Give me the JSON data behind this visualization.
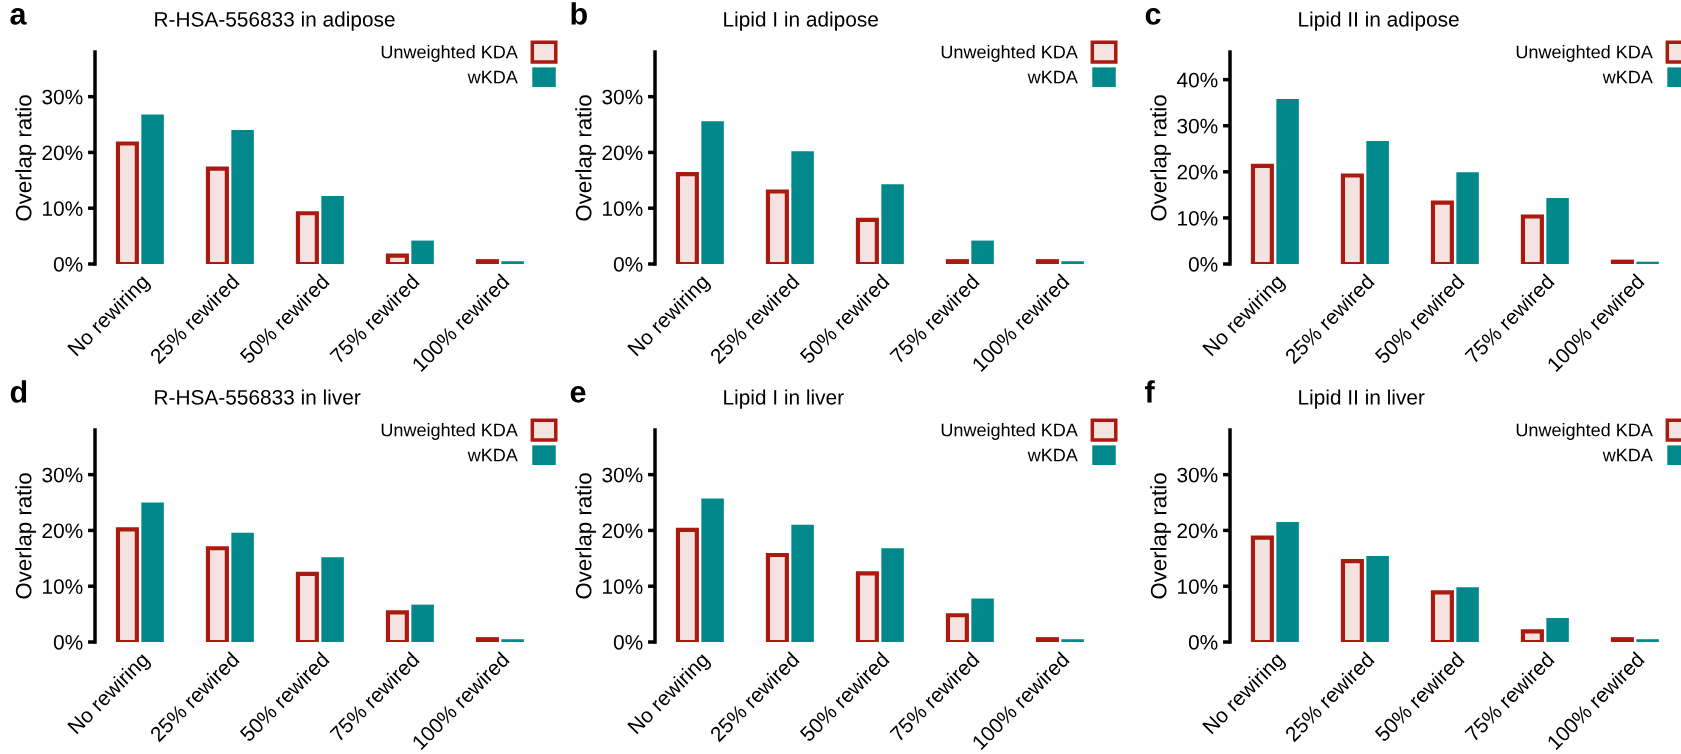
{
  "chart_data": [
    {
      "type": "bar",
      "title": "R-HSA-556833 in adipose",
      "annotations": [
        "a"
      ],
      "ylabel": "Overlap ratio",
      "categories": [
        "No rewiring",
        "25% rewired",
        "50% rewired",
        "75% rewired",
        "100% rewired"
      ],
      "ylim": [
        0,
        38
      ],
      "yticks": [
        {
          "value": 0,
          "label": "0%"
        },
        {
          "value": 10,
          "label": "10%"
        },
        {
          "value": 20,
          "label": "20%"
        },
        {
          "value": 30,
          "label": "30%"
        }
      ],
      "legend": "top right",
      "series": [
        {
          "name": "Unweighted KDA",
          "color": "#aa1a0f",
          "values": [
            21.6,
            17.1,
            9.1,
            1.5,
            0.5
          ]
        },
        {
          "name": "wKDA",
          "color": "#00888a",
          "values": [
            26.8,
            24.0,
            12.2,
            4.2,
            0.5
          ]
        }
      ]
    },
    {
      "type": "bar",
      "title": "Lipid I in adipose",
      "annotations": [
        "b"
      ],
      "ylabel": "Overlap ratio",
      "categories": [
        "No rewiring",
        "25% rewired",
        "50% rewired",
        "75% rewired",
        "100% rewired"
      ],
      "ylim": [
        0,
        38
      ],
      "yticks": [
        {
          "value": 0,
          "label": "0%"
        },
        {
          "value": 10,
          "label": "10%"
        },
        {
          "value": 20,
          "label": "20%"
        },
        {
          "value": 30,
          "label": "30%"
        }
      ],
      "legend": "top right",
      "series": [
        {
          "name": "Unweighted KDA",
          "color": "#aa1a0f",
          "values": [
            16.1,
            13.0,
            7.9,
            0.5,
            0.5
          ]
        },
        {
          "name": "wKDA",
          "color": "#00888a",
          "values": [
            25.6,
            20.2,
            14.3,
            4.2,
            0.5
          ]
        }
      ]
    },
    {
      "type": "bar",
      "title": "Lipid II in adipose",
      "annotations": [
        "c"
      ],
      "ylabel": "Overlap ratio",
      "categories": [
        "No rewiring",
        "25% rewired",
        "50% rewired",
        "75% rewired",
        "100% rewired"
      ],
      "ylim": [
        0,
        46
      ],
      "yticks": [
        {
          "value": 0,
          "label": "0%"
        },
        {
          "value": 10,
          "label": "10%"
        },
        {
          "value": 20,
          "label": "20%"
        },
        {
          "value": 30,
          "label": "30%"
        },
        {
          "value": 40,
          "label": "40%"
        }
      ],
      "legend": "top right",
      "series": [
        {
          "name": "Unweighted KDA",
          "color": "#aa1a0f",
          "values": [
            21.3,
            19.2,
            13.3,
            10.3,
            0.5
          ]
        },
        {
          "name": "wKDA",
          "color": "#00888a",
          "values": [
            35.8,
            26.7,
            19.9,
            14.3,
            0.5
          ]
        }
      ]
    },
    {
      "type": "bar",
      "title": "R-HSA-556833 in liver",
      "annotations": [
        "d"
      ],
      "ylabel": "Overlap ratio",
      "categories": [
        "No rewiring",
        "25% rewired",
        "50% rewired",
        "75% rewired",
        "100% rewired"
      ],
      "ylim": [
        0,
        38
      ],
      "yticks": [
        {
          "value": 0,
          "label": "0%"
        },
        {
          "value": 10,
          "label": "10%"
        },
        {
          "value": 20,
          "label": "20%"
        },
        {
          "value": 30,
          "label": "30%"
        }
      ],
      "legend": "top right",
      "series": [
        {
          "name": "Unweighted KDA",
          "color": "#aa1a0f",
          "values": [
            20.2,
            16.8,
            12.2,
            5.3,
            0.5
          ]
        },
        {
          "name": "wKDA",
          "color": "#00888a",
          "values": [
            25.0,
            19.6,
            15.2,
            6.7,
            0.5
          ]
        }
      ]
    },
    {
      "type": "bar",
      "title": "Lipid I in liver",
      "annotations": [
        "e"
      ],
      "ylabel": "Overlap ratio",
      "categories": [
        "No rewiring",
        "25% rewired",
        "50% rewired",
        "75% rewired",
        "100% rewired"
      ],
      "ylim": [
        0,
        38
      ],
      "yticks": [
        {
          "value": 0,
          "label": "0%"
        },
        {
          "value": 10,
          "label": "10%"
        },
        {
          "value": 20,
          "label": "20%"
        },
        {
          "value": 30,
          "label": "30%"
        }
      ],
      "legend": "top right",
      "series": [
        {
          "name": "Unweighted KDA",
          "color": "#aa1a0f",
          "values": [
            20.1,
            15.6,
            12.3,
            4.8,
            0.5
          ]
        },
        {
          "name": "wKDA",
          "color": "#00888a",
          "values": [
            25.7,
            21.0,
            16.8,
            7.8,
            0.5
          ]
        }
      ]
    },
    {
      "type": "bar",
      "title": "Lipid II in liver",
      "annotations": [
        "f"
      ],
      "ylabel": "Overlap ratio",
      "categories": [
        "No rewiring",
        "25% rewired",
        "50% rewired",
        "75% rewired",
        "100% rewired"
      ],
      "ylim": [
        0,
        38
      ],
      "yticks": [
        {
          "value": 0,
          "label": "0%"
        },
        {
          "value": 10,
          "label": "10%"
        },
        {
          "value": 20,
          "label": "20%"
        },
        {
          "value": 30,
          "label": "30%"
        }
      ],
      "legend": "top right",
      "series": [
        {
          "name": "Unweighted KDA",
          "color": "#aa1a0f",
          "values": [
            18.7,
            14.5,
            8.9,
            1.9,
            0.5
          ]
        },
        {
          "name": "wKDA",
          "color": "#00888a",
          "values": [
            21.5,
            15.4,
            9.8,
            4.3,
            0.5
          ]
        }
      ]
    }
  ]
}
